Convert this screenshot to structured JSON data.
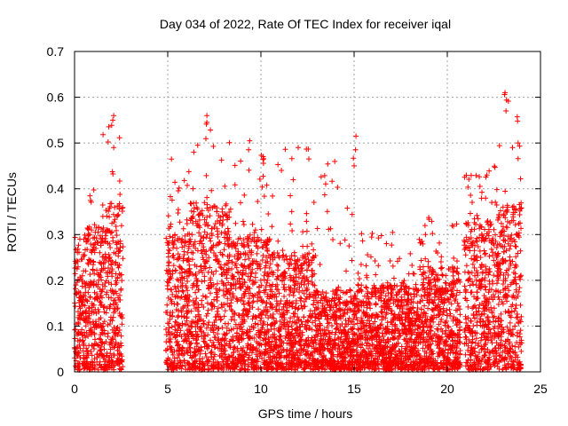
{
  "chart_data": {
    "type": "scatter",
    "title": "Day 034 of 2022, Rate Of TEC Index for receiver iqal",
    "xlabel": "GPS time / hours",
    "ylabel": "ROTI / TECUs",
    "xlim": [
      0,
      25
    ],
    "ylim": [
      0,
      0.7
    ],
    "xticks": [
      0,
      5,
      10,
      15,
      20,
      25
    ],
    "yticks": [
      0,
      0.1,
      0.2,
      0.3,
      0.4,
      0.5,
      0.6,
      0.7
    ],
    "xtick_labels": [
      "0",
      "5",
      "10",
      "15",
      "20",
      "25"
    ],
    "ytick_labels": [
      "0",
      "0.1",
      "0.2",
      "0.3",
      "0.4",
      "0.5",
      "0.6",
      "0.7"
    ],
    "grid": true,
    "marker": "plus",
    "marker_color": "#ff0000",
    "segments": [
      {
        "x_start": 0.0,
        "x_end": 0.6,
        "typical_max": 0.27,
        "peak": 0.3
      },
      {
        "x_start": 0.6,
        "x_end": 1.5,
        "typical_max": 0.33,
        "peak": 0.4
      },
      {
        "x_start": 1.5,
        "x_end": 2.6,
        "typical_max": 0.37,
        "peak": 0.56
      },
      {
        "x_start": 4.9,
        "x_end": 6.2,
        "typical_max": 0.3,
        "peak": 0.46
      },
      {
        "x_start": 6.2,
        "x_end": 8.3,
        "typical_max": 0.37,
        "peak": 0.56
      },
      {
        "x_start": 8.3,
        "x_end": 10.5,
        "typical_max": 0.3,
        "peak": 0.51
      },
      {
        "x_start": 10.5,
        "x_end": 12.9,
        "typical_max": 0.26,
        "peak": 0.49
      },
      {
        "x_start": 12.9,
        "x_end": 15.2,
        "typical_max": 0.18,
        "peak": 0.52
      },
      {
        "x_start": 15.2,
        "x_end": 18.5,
        "typical_max": 0.19,
        "peak": 0.31
      },
      {
        "x_start": 18.5,
        "x_end": 20.7,
        "typical_max": 0.23,
        "peak": 0.34
      },
      {
        "x_start": 20.9,
        "x_end": 22.6,
        "typical_max": 0.33,
        "peak": 0.45
      },
      {
        "x_start": 22.6,
        "x_end": 24.0,
        "typical_max": 0.37,
        "peak": 0.61
      }
    ],
    "notable_points": [
      {
        "x": 2.1,
        "y": 0.56
      },
      {
        "x": 2.05,
        "y": 0.55
      },
      {
        "x": 2.1,
        "y": 0.49
      },
      {
        "x": 5.2,
        "y": 0.465
      },
      {
        "x": 7.1,
        "y": 0.56
      },
      {
        "x": 7.1,
        "y": 0.545
      },
      {
        "x": 9.4,
        "y": 0.505
      },
      {
        "x": 12.0,
        "y": 0.49
      },
      {
        "x": 15.1,
        "y": 0.515
      },
      {
        "x": 15.0,
        "y": 0.45
      },
      {
        "x": 23.1,
        "y": 0.61
      },
      {
        "x": 23.15,
        "y": 0.57
      },
      {
        "x": 23.5,
        "y": 0.49
      },
      {
        "x": 23.8,
        "y": 0.5
      }
    ]
  }
}
